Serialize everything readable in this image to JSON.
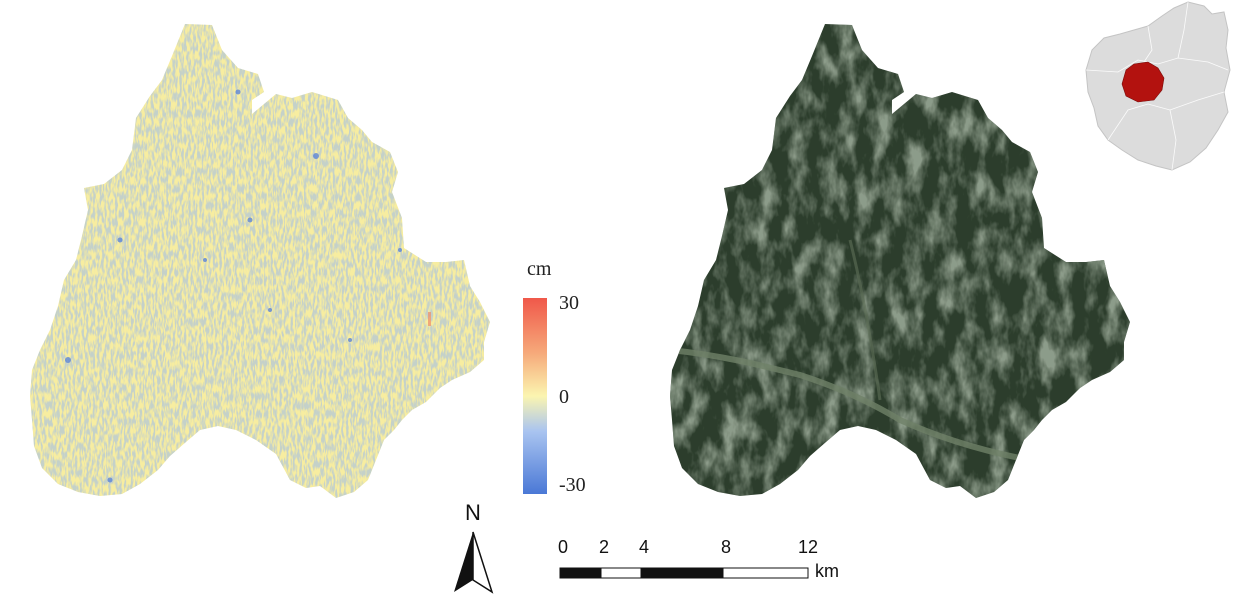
{
  "legend": {
    "unit": "cm",
    "ticks": [
      {
        "label": "30",
        "value": 30
      },
      {
        "label": "0",
        "value": 0
      },
      {
        "label": "-30",
        "value": -30
      }
    ],
    "colors": {
      "high": "#f0584a",
      "mid": "#fbf5b0",
      "low": "#4a78d6"
    }
  },
  "scale_bar": {
    "labels": [
      "0",
      "2",
      "4",
      "8",
      "12"
    ],
    "unit": "km"
  },
  "north_arrow": {
    "label": "N"
  },
  "colors": {
    "deformation_base": "#f7eda0",
    "satellite_base": "#2c3d2c",
    "satellite_valley": "#6f8168",
    "locator_region": "#dcdcdc",
    "locator_highlight": "#b3120f"
  }
}
